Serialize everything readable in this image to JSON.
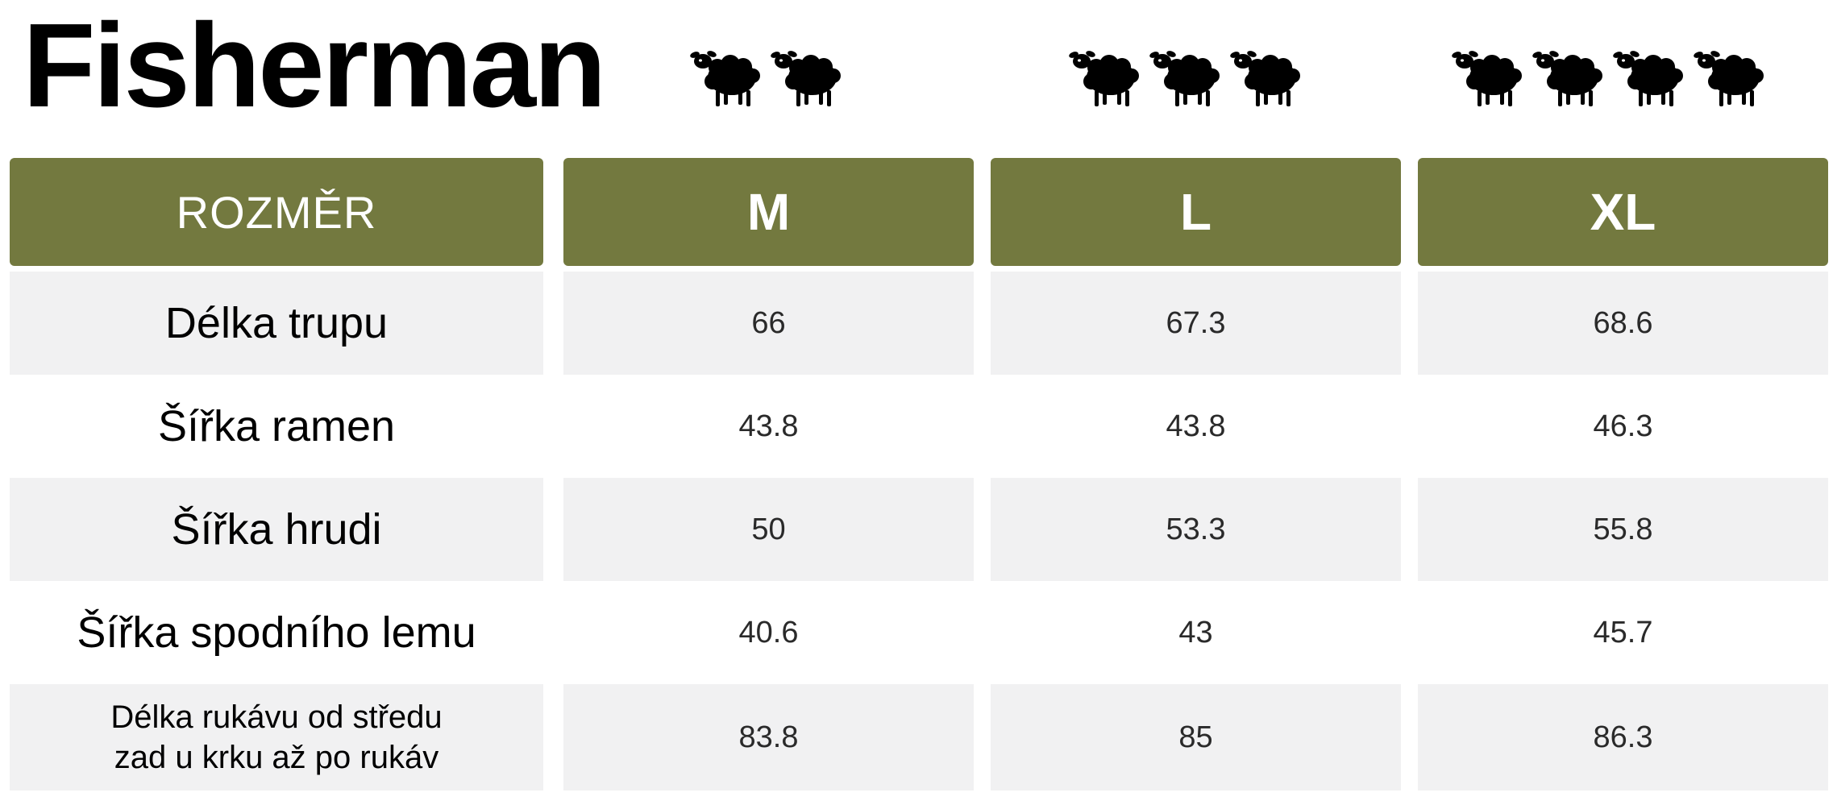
{
  "title": "Fisherman",
  "icons": {
    "sheep_counts": [
      2,
      3,
      4
    ],
    "icon_name": "sheep-icon",
    "color": "#000000"
  },
  "colors": {
    "header_bg": "#73793f",
    "header_text": "#ffffff",
    "row_alt_bg": "#f1f1f2"
  },
  "table": {
    "header_label": "ROZMĚR",
    "sizes": [
      "M",
      "L",
      "XL"
    ],
    "rows": [
      {
        "label": "Délka trupu",
        "values": [
          "66",
          "67.3",
          "68.6"
        ]
      },
      {
        "label": "Šířka ramen",
        "values": [
          "43.8",
          "43.8",
          "46.3"
        ]
      },
      {
        "label": "Šířka hrudi",
        "values": [
          "50",
          "53.3",
          "55.8"
        ]
      },
      {
        "label": "Šířka spodního lemu",
        "values": [
          "40.6",
          "43",
          "45.7"
        ]
      },
      {
        "label_line1": "Délka rukávu od středu",
        "label_line2": "zad u krku až po rukáv",
        "values": [
          "83.8",
          "85",
          "86.3"
        ]
      }
    ]
  }
}
